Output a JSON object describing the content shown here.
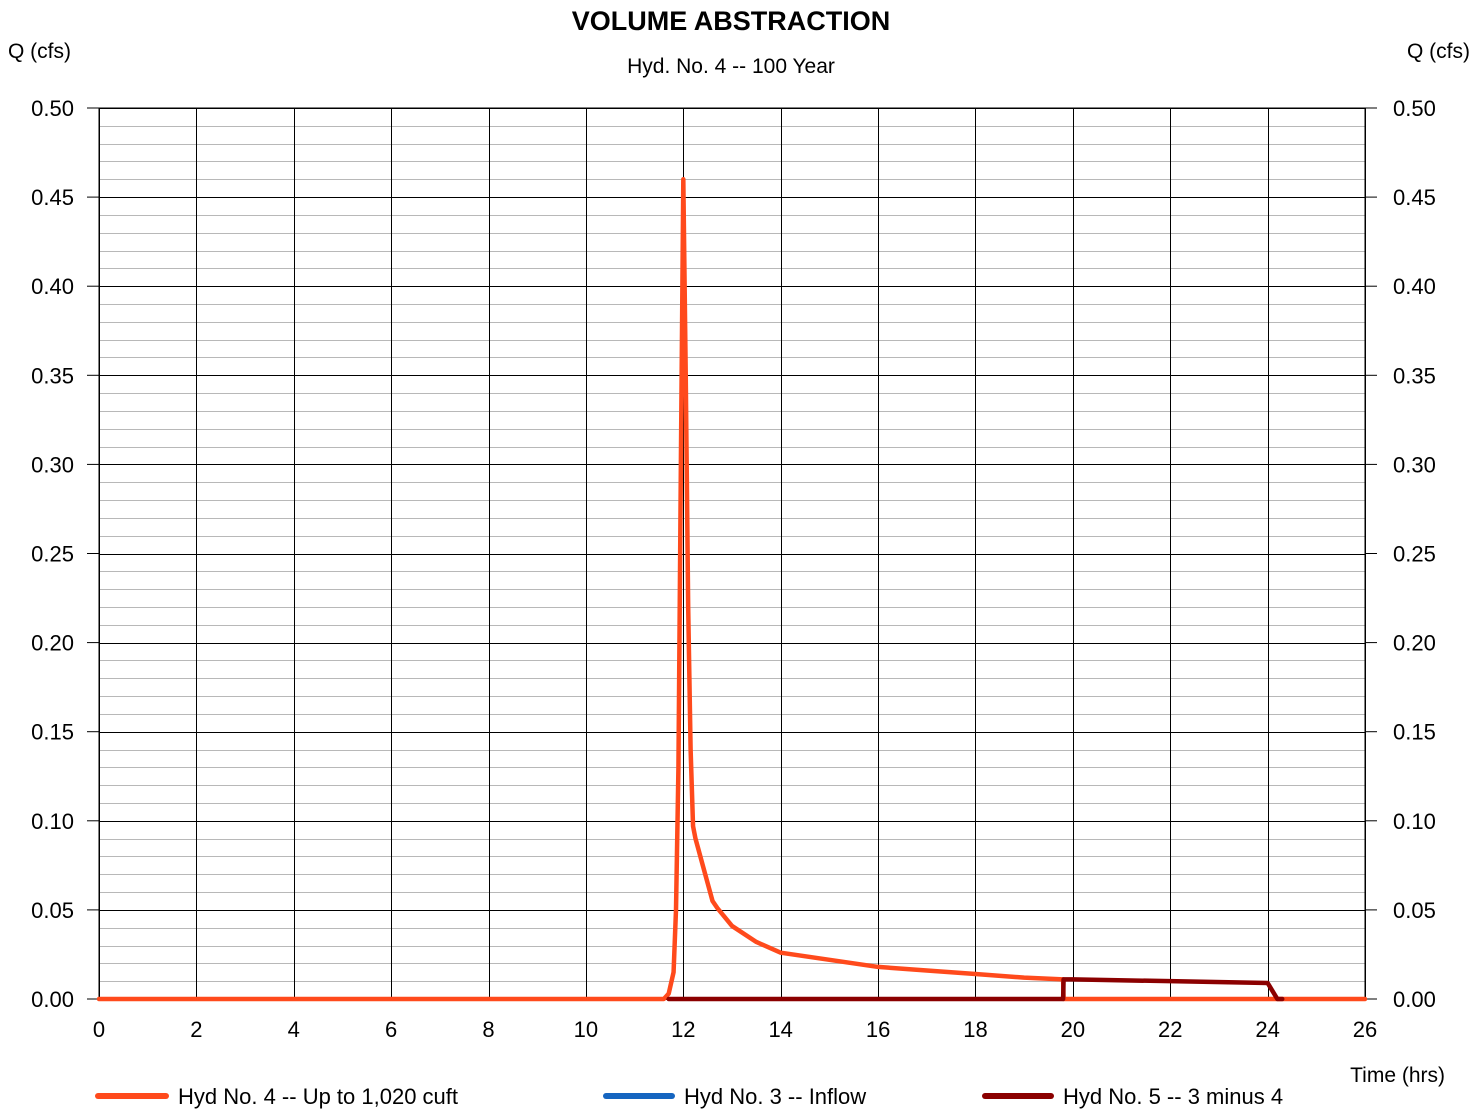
{
  "chart_data": {
    "type": "line",
    "title": "VOLUME ABSTRACTION",
    "subtitle": "Hyd. No. 4 -- 100 Year",
    "ylabel_left": "Q (cfs)",
    "ylabel_right": "Q (cfs)",
    "xlabel": "Time (hrs)",
    "xlim": [
      0,
      26
    ],
    "ylim": [
      0,
      0.5
    ],
    "x_ticks": [
      "0",
      "2",
      "4",
      "6",
      "8",
      "10",
      "12",
      "14",
      "16",
      "18",
      "20",
      "22",
      "24",
      "26"
    ],
    "y_ticks": [
      "0.00",
      "0.05",
      "0.10",
      "0.15",
      "0.20",
      "0.25",
      "0.30",
      "0.35",
      "0.40",
      "0.45",
      "0.50"
    ],
    "grid": true,
    "legend_position": "bottom",
    "series": [
      {
        "name": "Hyd No. 4 -- Up to 1,020 cuft",
        "color": "#ff4a1c",
        "x": [
          0,
          11.6,
          11.7,
          11.8,
          11.85,
          11.9,
          11.95,
          12.0,
          12.05,
          12.1,
          12.15,
          12.2,
          12.25,
          12.3,
          12.4,
          12.5,
          12.6,
          12.7,
          13.0,
          13.5,
          14.0,
          15.0,
          16.0,
          17.0,
          18.0,
          19.0,
          19.8,
          19.81,
          26
        ],
        "y": [
          0,
          0,
          0.003,
          0.015,
          0.05,
          0.13,
          0.3,
          0.46,
          0.35,
          0.22,
          0.14,
          0.097,
          0.09,
          0.085,
          0.075,
          0.065,
          0.055,
          0.051,
          0.041,
          0.032,
          0.026,
          0.022,
          0.018,
          0.016,
          0.014,
          0.012,
          0.011,
          0,
          0
        ]
      },
      {
        "name": "Hyd No. 3 -- Inflow",
        "color": "#1565c0",
        "x": [],
        "y": []
      },
      {
        "name": "Hyd No. 5 -- 3 minus 4",
        "color": "#8b0000",
        "x": [
          11.7,
          19.8,
          19.81,
          20.0,
          22.0,
          24.0,
          24.2,
          24.3
        ],
        "y": [
          0,
          0,
          0.011,
          0.011,
          0.01,
          0.009,
          0,
          0
        ]
      }
    ]
  }
}
